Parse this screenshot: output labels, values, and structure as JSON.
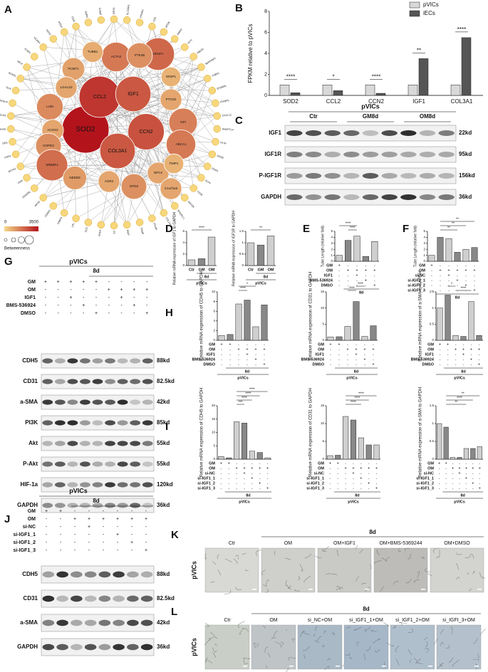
{
  "panel_labels": [
    "A",
    "B",
    "C",
    "D",
    "E",
    "F",
    "G",
    "H",
    "I",
    "J",
    "K",
    "L"
  ],
  "network": {
    "nodes": [
      "SOD2",
      "CCL2",
      "IGF1",
      "CCN2",
      "COL3A1",
      "VEGFA",
      "ACTA2",
      "PTK2B",
      "TUBB1",
      "PCMT1",
      "LGALS3",
      "LUM",
      "ACOX2",
      "GOPD2",
      "SREBF1",
      "NEDD9",
      "AGR2",
      "GPD2",
      "PTGS2",
      "GPI",
      "ABCA1",
      "NPC2",
      "TIMP1",
      "WISP1",
      "C1orf116"
    ],
    "betweenness": [
      3500,
      2900,
      2300,
      2400,
      2300,
      2000,
      1700,
      1300,
      800,
      1000,
      900,
      1400,
      900,
      1300,
      1900,
      1100,
      900,
      1300,
      900,
      1600,
      1700,
      900,
      700,
      700,
      900
    ],
    "ring": [
      "GPX3",
      "SLC40A1",
      "PPARG",
      "CFD",
      "APOE",
      "MMP2",
      "DCN",
      "FBLN1",
      "SERPINF1",
      "THBS1",
      "EFEMP1",
      "IGFBP5",
      "CXCL12",
      "ANGPTL4",
      "PLTP",
      "FOSB",
      "EGR1",
      "KLF4",
      "CD36",
      "ADH1B",
      "SPARCL1",
      "COL14A1",
      "ITGA8",
      "TXNIP",
      "MGP",
      "C3",
      "PDK4",
      "SCD",
      "LPL",
      "FABP4",
      "CEBPD",
      "APOD",
      "PDGFRL",
      "GSN",
      "MYH11",
      "CNN1",
      "DES",
      "RGS5",
      "NOTCH3",
      "TAGLN",
      "ELN",
      "ACKR1",
      "SELE",
      "ICAM1",
      "VCAM1",
      "HAS2",
      "PRG4",
      "OGN",
      "ASPN",
      "COMP"
    ],
    "scale_min": "0",
    "scale_max": "3500",
    "legend_title": "Betweenness",
    "color_low": "#f5d98a",
    "color_high": "#b3141c"
  },
  "chart_b": {
    "type": "bar",
    "ylabel": "FPKM relative to pVICs",
    "categories": [
      "SOD2",
      "CCL2",
      "CCN2",
      "IGF1",
      "COL3A1"
    ],
    "series": [
      {
        "name": "pVICs",
        "color": "#d9d9d9",
        "values": [
          1,
          1,
          1,
          1,
          1
        ]
      },
      {
        "name": "iECs",
        "color": "#555555",
        "values": [
          0.25,
          0.45,
          0.2,
          3.5,
          5.5
        ]
      }
    ],
    "ylim": [
      0,
      8
    ],
    "yticks": [
      0,
      2,
      4,
      6,
      8
    ],
    "stars": [
      "****",
      "*",
      "****",
      "**",
      "****"
    ]
  },
  "blot_c": {
    "header": "pVICs",
    "groups": [
      "Ctr",
      "GM8d",
      "OM8d"
    ],
    "rows": [
      "IGF1",
      "IGF1R",
      "P-IGF1R",
      "GAPDH"
    ],
    "kd": [
      "22kd",
      "95kd",
      "156kd",
      "36kd"
    ]
  },
  "small_charts": [
    {
      "type": "bar",
      "ylabel": "Relative mRNA expression of IGF1 to GAPDH",
      "categories": [
        "Ctr",
        "GM",
        "OM"
      ],
      "group": "8d",
      "cell": "pVICs",
      "values": [
        1,
        1.2,
        5
      ],
      "ylim": [
        0,
        6
      ],
      "yticks": [
        0,
        2,
        4,
        6
      ],
      "color": "#888888",
      "stars": [
        "****"
      ]
    },
    {
      "type": "bar",
      "ylabel": "Relative mRNA expression of IGF1R to GAPDH",
      "categories": [
        "Ctr",
        "GM",
        "OM"
      ],
      "group": "8d",
      "cell": "pVICs",
      "values": [
        1,
        0.9,
        1.3
      ],
      "ylim": [
        0,
        1.5
      ],
      "yticks": [
        0,
        0.5,
        1,
        1.5
      ],
      "color": "#888888",
      "stars": [
        "**"
      ]
    },
    {
      "type": "bar",
      "ylabel": "Tube Length (relative fold)",
      "values": [
        1,
        3.5,
        4.2,
        0.8,
        3.3
      ],
      "ylim": [
        0,
        5
      ],
      "yticks": [
        0,
        1,
        2,
        3,
        4,
        5
      ],
      "color": "#888888",
      "group": "8d",
      "stars": [
        "****",
        "****"
      ],
      "treatments": [
        {
          "name": "GM",
          "signs": [
            "+",
            "-",
            "-",
            "-",
            "-"
          ]
        },
        {
          "name": "OM",
          "signs": [
            "-",
            "+",
            "+",
            "+",
            "+"
          ]
        },
        {
          "name": "IGF1",
          "signs": [
            "-",
            "-",
            "+",
            "-",
            "-"
          ]
        },
        {
          "name": "BMS-536924",
          "signs": [
            "-",
            "-",
            "-",
            "+",
            "-"
          ]
        },
        {
          "name": "DMSO",
          "signs": [
            "-",
            "-",
            "-",
            "-",
            "+"
          ]
        }
      ]
    },
    {
      "type": "bar",
      "ylabel": "Tube Length (relative fold)",
      "values": [
        1,
        4,
        3.8,
        1.5,
        2,
        2.3
      ],
      "ylim": [
        0,
        5
      ],
      "yticks": [
        0,
        1,
        2,
        3,
        4,
        5
      ],
      "color": "#888888",
      "group": "8d",
      "stars": [
        "**",
        "**",
        "**"
      ],
      "treatments": [
        {
          "name": "GM",
          "signs": [
            "+",
            "-",
            "-",
            "-",
            "-",
            "-"
          ]
        },
        {
          "name": "OM",
          "signs": [
            "-",
            "+",
            "+",
            "+",
            "+",
            "+"
          ]
        },
        {
          "name": "si-NC",
          "signs": [
            "-",
            "-",
            "+",
            "-",
            "-",
            "-"
          ]
        },
        {
          "name": "si-IGF1_1",
          "signs": [
            "-",
            "-",
            "-",
            "+",
            "-",
            "-"
          ]
        },
        {
          "name": "si-IGF1_2",
          "signs": [
            "-",
            "-",
            "-",
            "-",
            "+",
            "-"
          ]
        },
        {
          "name": "si-IGF1_3",
          "signs": [
            "-",
            "-",
            "-",
            "-",
            "-",
            "+"
          ]
        }
      ]
    },
    {
      "type": "bar",
      "ylabel": "Relative mRNA expression of CDH5 to GAPDH",
      "values": [
        1,
        1.2,
        7.5,
        8.3,
        2.8,
        7.3
      ],
      "ylim": [
        0,
        10
      ],
      "yticks": [
        0,
        2,
        4,
        6,
        8,
        10
      ],
      "color": "#888888",
      "group": "8d",
      "cell": "pVICs",
      "stars": [
        "****",
        "*"
      ],
      "treatments": [
        {
          "name": "GM",
          "signs": [
            "+",
            "+",
            "-",
            "-",
            "-",
            "-"
          ]
        },
        {
          "name": "OM",
          "signs": [
            "-",
            "-",
            "+",
            "+",
            "+",
            "+"
          ]
        },
        {
          "name": "IGF1",
          "signs": [
            "-",
            "-",
            "-",
            "+",
            "-",
            "-"
          ]
        },
        {
          "name": "BMS-536924",
          "signs": [
            "-",
            "-",
            "-",
            "-",
            "+",
            "-"
          ]
        },
        {
          "name": "DMSO",
          "signs": [
            "-",
            "-",
            "-",
            "-",
            "-",
            "+"
          ]
        }
      ]
    },
    {
      "type": "bar",
      "ylabel": "Relative mRNA expression of CD31 to GAPDH",
      "values": [
        1,
        1.1,
        4.3,
        12,
        1.2,
        4.5
      ],
      "ylim": [
        0,
        15
      ],
      "yticks": [
        0,
        5,
        10,
        15
      ],
      "color": "#888888",
      "group": "8d",
      "cell": "pVICs",
      "stars": [
        "****",
        "****"
      ],
      "treatments": [
        {
          "name": "GM",
          "signs": [
            "+",
            "+",
            "-",
            "-",
            "-",
            "-"
          ]
        },
        {
          "name": "OM",
          "signs": [
            "-",
            "-",
            "+",
            "+",
            "+",
            "+"
          ]
        },
        {
          "name": "IGF1",
          "signs": [
            "-",
            "-",
            "-",
            "+",
            "-",
            "-"
          ]
        },
        {
          "name": "BMS-536924",
          "signs": [
            "-",
            "-",
            "-",
            "-",
            "+",
            "-"
          ]
        },
        {
          "name": "DMSO",
          "signs": [
            "-",
            "-",
            "-",
            "-",
            "-",
            "+"
          ]
        }
      ]
    },
    {
      "type": "bar",
      "ylabel": "Relative mRNA expression of a-SMA to GAPDH",
      "values": [
        1,
        1.4,
        0.15,
        0.12,
        1.2,
        0.15
      ],
      "ylim": [
        0,
        1.5
      ],
      "yticks": [
        0,
        0.5,
        1,
        1.5
      ],
      "color": "#888888",
      "group": "8d",
      "cell": "pVICs",
      "stars": [
        "****",
        "*"
      ],
      "treatments": [
        {
          "name": "GM",
          "signs": [
            "+",
            "+",
            "-",
            "-",
            "-",
            "-"
          ]
        },
        {
          "name": "OM",
          "signs": [
            "-",
            "-",
            "+",
            "+",
            "+",
            "+"
          ]
        },
        {
          "name": "IGF1",
          "signs": [
            "-",
            "-",
            "-",
            "+",
            "-",
            "-"
          ]
        },
        {
          "name": "BMS-536924",
          "signs": [
            "-",
            "-",
            "-",
            "-",
            "+",
            "-"
          ]
        },
        {
          "name": "DMSO",
          "signs": [
            "-",
            "-",
            "-",
            "-",
            "-",
            "+"
          ]
        }
      ]
    },
    {
      "type": "bar",
      "ylabel": "Relative mRNA expression of CDH5 to GAPDH",
      "values": [
        1,
        0.5,
        14,
        13.5,
        3,
        2.5,
        0.5
      ],
      "ylim": [
        0,
        20
      ],
      "yticks": [
        0,
        5,
        10,
        15,
        20
      ],
      "color": "#888888",
      "group": "8d",
      "cell": "pVICs",
      "stars": [
        "***",
        "****",
        "****",
        "****"
      ],
      "treatments": [
        {
          "name": "GM",
          "signs": [
            "+",
            "+",
            "-",
            "-",
            "-",
            "-",
            "-"
          ]
        },
        {
          "name": "OM",
          "signs": [
            "-",
            "-",
            "+",
            "+",
            "+",
            "+",
            "+"
          ]
        },
        {
          "name": "si-NC",
          "signs": [
            "-",
            "-",
            "-",
            "+",
            "-",
            "-",
            "-"
          ]
        },
        {
          "name": "si-IGF1_1",
          "signs": [
            "-",
            "-",
            "-",
            "-",
            "+",
            "-",
            "-"
          ]
        },
        {
          "name": "si-IGF1_2",
          "signs": [
            "-",
            "-",
            "-",
            "-",
            "-",
            "+",
            "-"
          ]
        },
        {
          "name": "si-IGF1_3",
          "signs": [
            "-",
            "-",
            "-",
            "-",
            "-",
            "-",
            "+"
          ]
        }
      ]
    },
    {
      "type": "bar",
      "ylabel": "Relative mRNA expression of CD31 to GAPDH",
      "values": [
        1,
        1.1,
        12,
        11,
        6,
        4,
        4
      ],
      "ylim": [
        0,
        15
      ],
      "yticks": [
        0,
        5,
        10,
        15
      ],
      "color": "#888888",
      "group": "8d",
      "cell": "pVICs",
      "stars": [
        "****",
        "****",
        "****"
      ],
      "treatments": [
        {
          "name": "GM",
          "signs": [
            "+",
            "+",
            "-",
            "-",
            "-",
            "-",
            "-"
          ]
        },
        {
          "name": "OM",
          "signs": [
            "-",
            "-",
            "+",
            "+",
            "+",
            "+",
            "+"
          ]
        },
        {
          "name": "si-NC",
          "signs": [
            "-",
            "-",
            "-",
            "+",
            "-",
            "-",
            "-"
          ]
        },
        {
          "name": "si-IGF1_1",
          "signs": [
            "-",
            "-",
            "-",
            "-",
            "+",
            "-",
            "-"
          ]
        },
        {
          "name": "si-IGF1_2",
          "signs": [
            "-",
            "-",
            "-",
            "-",
            "-",
            "+",
            "-"
          ]
        },
        {
          "name": "si-IGF1_3",
          "signs": [
            "-",
            "-",
            "-",
            "-",
            "-",
            "-",
            "+"
          ]
        }
      ]
    },
    {
      "type": "bar",
      "ylabel": "Relative mRNA expression of a-SMA to GAPDH",
      "values": [
        1,
        0.9,
        0.05,
        0.05,
        0.3,
        0.3,
        0.35
      ],
      "ylim": [
        0,
        1.5
      ],
      "yticks": [
        0,
        0.5,
        1,
        1.5
      ],
      "color": "#888888",
      "group": "8d",
      "cell": "pVICs",
      "stars": [
        "**",
        "****",
        "**"
      ],
      "treatments": [
        {
          "name": "GM",
          "signs": [
            "+",
            "+",
            "-",
            "-",
            "-",
            "-",
            "-"
          ]
        },
        {
          "name": "OM",
          "signs": [
            "-",
            "-",
            "+",
            "+",
            "+",
            "+",
            "+"
          ]
        },
        {
          "name": "si-NC",
          "signs": [
            "-",
            "-",
            "-",
            "+",
            "-",
            "-",
            "-"
          ]
        },
        {
          "name": "si-IGF1_1",
          "signs": [
            "-",
            "-",
            "-",
            "-",
            "+",
            "-",
            "-"
          ]
        },
        {
          "name": "si-IGF1_2",
          "signs": [
            "-",
            "-",
            "-",
            "-",
            "-",
            "+",
            "-"
          ]
        },
        {
          "name": "si-IGF1_3",
          "signs": [
            "-",
            "-",
            "-",
            "-",
            "-",
            "-",
            "+"
          ]
        }
      ]
    }
  ],
  "blot_g": {
    "header": "pVICs",
    "group": "8d",
    "rows": [
      "CDH5",
      "CD31",
      "a-SMA",
      "PI3K",
      "Akt",
      "P-Akt",
      "HIF-1a",
      "GAPDH"
    ],
    "kd": [
      "88kd",
      "82.5kd",
      "42kd",
      "85kd",
      "55kd",
      "55kd",
      "120kd",
      "36kd"
    ],
    "treatments": [
      {
        "name": "GM",
        "signs": [
          "+",
          "+",
          "+",
          "+",
          "+",
          "-",
          "-",
          "-",
          "-"
        ]
      },
      {
        "name": "OM",
        "signs": [
          "-",
          "-",
          "-",
          "-",
          "-",
          "+",
          "+",
          "+",
          "+"
        ]
      },
      {
        "name": "IGF1",
        "signs": [
          "-",
          "-",
          "+",
          "-",
          "-",
          "-",
          "+",
          "-",
          "-"
        ]
      },
      {
        "name": "BMS-536924",
        "signs": [
          "-",
          "-",
          "-",
          "+",
          "-",
          "-",
          "-",
          "+",
          "-"
        ]
      },
      {
        "name": "DMSO",
        "signs": [
          "-",
          "-",
          "-",
          "-",
          "+",
          "-",
          "-",
          "-",
          "+"
        ]
      }
    ]
  },
  "blot_j": {
    "header": "pVICs",
    "group": "8d",
    "rows": [
      "CDH5",
      "CD31",
      "a-SMA",
      "GAPDH"
    ],
    "kd": [
      "88kd",
      "82.5kd",
      "42kd",
      "36kd"
    ],
    "treatments": [
      {
        "name": "GM",
        "signs": [
          "+",
          "+",
          "-",
          "-",
          "-",
          "-",
          "-",
          "-"
        ]
      },
      {
        "name": "OM",
        "signs": [
          "-",
          "-",
          "+",
          "+",
          "+",
          "+",
          "+",
          "+"
        ]
      },
      {
        "name": "si-NC",
        "signs": [
          "-",
          "-",
          "-",
          "+",
          "-",
          "-",
          "-",
          "-"
        ]
      },
      {
        "name": "si-IGF1_1",
        "signs": [
          "-",
          "-",
          "-",
          "-",
          "-",
          "+",
          "-",
          "-"
        ]
      },
      {
        "name": "si-IGF1_2",
        "signs": [
          "-",
          "-",
          "-",
          "-",
          "-",
          "-",
          "+",
          "-"
        ]
      },
      {
        "name": "si-IGF1_3",
        "signs": [
          "-",
          "-",
          "-",
          "-",
          "-",
          "-",
          "-",
          "+"
        ]
      }
    ]
  },
  "images_k": {
    "row": "pVICs",
    "group": "8d",
    "captions": [
      "Ctr",
      "OM",
      "OM+IGF1",
      "OM+BMS-5369244",
      "OM+DMSO"
    ]
  },
  "images_l": {
    "row": "pVICs",
    "group": "8d",
    "captions": [
      "Ctr",
      "OM",
      "si_NC+OM",
      "si_IGF1_1+OM",
      "si_IGF1_2+OM",
      "si_IGFt_3+OM"
    ]
  }
}
